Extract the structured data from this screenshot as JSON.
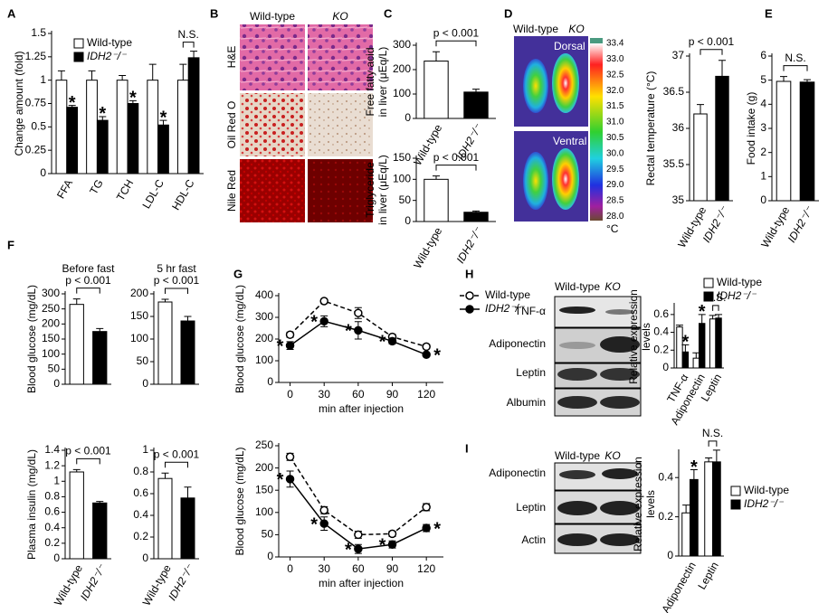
{
  "chart_data": [
    {
      "panel": "A",
      "type": "bar",
      "categories": [
        "FFA",
        "TG",
        "TCH",
        "LDL-C",
        "HDL-C"
      ],
      "series": [
        {
          "name": "Wild-type",
          "color": "#ffffff",
          "values": [
            1,
            1,
            1,
            1,
            1
          ],
          "errors": [
            0.1,
            0.1,
            0.05,
            0.17,
            0.17
          ]
        },
        {
          "name": "IDH2⁻/⁻",
          "color": "#000000",
          "values": [
            0.71,
            0.57,
            0.75,
            0.52,
            1.24
          ],
          "errors": [
            0.02,
            0.04,
            0.03,
            0.05,
            0.07
          ],
          "annotations": [
            "*",
            "*",
            "*",
            "*",
            null
          ]
        }
      ],
      "ylim": [
        0,
        1.5
      ],
      "yticks": [
        0,
        0.25,
        0.5,
        0.75,
        1,
        1.25,
        1.5
      ],
      "ylabel": "Change amount (fold)",
      "comparisons": [
        {
          "label": "N.S.",
          "category": "HDL-C"
        }
      ]
    },
    {
      "panel": "C",
      "type": "bar",
      "categories": [
        "Wild-type",
        "IDH2⁻/⁻"
      ],
      "colors": [
        "#ffffff",
        "#000000"
      ],
      "values": [
        235,
        108
      ],
      "errors": [
        38,
        12
      ],
      "ylim": [
        0,
        300
      ],
      "yticks": [
        0,
        100,
        200,
        300
      ],
      "ylabel": [
        "Free fatty acid",
        "in liver (μEq/L)"
      ],
      "comparison": "p < 0.001"
    },
    {
      "type": "bar",
      "categories": [
        "Wild-type",
        "IDH2⁻/⁻"
      ],
      "colors": [
        "#ffffff",
        "#000000"
      ],
      "values": [
        100,
        22
      ],
      "errors": [
        8,
        3
      ],
      "ylim": [
        0,
        150
      ],
      "yticks": [
        0,
        50,
        100,
        150
      ],
      "ylabel": [
        "Triglyceride",
        "in liver (μEq/L)"
      ],
      "comparison": "p < 0.001"
    },
    {
      "type": "bar",
      "categories": [
        "Wild-type",
        "IDH2⁻/⁻"
      ],
      "colors": [
        "#ffffff",
        "#000000"
      ],
      "values": [
        36.2,
        36.72
      ],
      "errors": [
        0.13,
        0.22
      ],
      "ylim": [
        35,
        37
      ],
      "yticks": [
        35,
        35.5,
        36,
        36.5,
        37
      ],
      "ylabel": "Rectal temperature (°C)",
      "comparison": "p < 0.001"
    },
    {
      "panel": "E",
      "type": "bar",
      "categories": [
        "Wild-type",
        "IDH2⁻/⁻"
      ],
      "colors": [
        "#ffffff",
        "#000000"
      ],
      "values": [
        4.95,
        4.92
      ],
      "errors": [
        0.2,
        0.1
      ],
      "ylim": [
        0,
        6
      ],
      "yticks": [
        0,
        1,
        2,
        3,
        4,
        5,
        6
      ],
      "ylabel": "Food intake (g)",
      "comparison": "N.S."
    },
    {
      "panel": "F",
      "type": "bar",
      "title": "Before fast",
      "categories": [
        null,
        null
      ],
      "colors": [
        "#ffffff",
        "#000000"
      ],
      "values": [
        265,
        175
      ],
      "errors": [
        18,
        10
      ],
      "ylim": [
        0,
        300
      ],
      "yticks": [
        0,
        50,
        100,
        150,
        200,
        250,
        300
      ],
      "ylabel": "Blood glucose (mg/dL)",
      "comparison": "p < 0.001"
    },
    {
      "type": "bar",
      "title": "5 hr fast",
      "categories": [
        null,
        null
      ],
      "colors": [
        "#ffffff",
        "#000000"
      ],
      "values": [
        182,
        140
      ],
      "errors": [
        6,
        10
      ],
      "ylim": [
        0,
        200
      ],
      "yticks": [
        0,
        50,
        100,
        150,
        200
      ],
      "comparison": "p < 0.001"
    },
    {
      "type": "bar",
      "categories": [
        "Wild-type",
        "IDH2⁻/⁻"
      ],
      "colors": [
        "#ffffff",
        "#000000"
      ],
      "values": [
        1.12,
        0.72
      ],
      "errors": [
        0.03,
        0.02
      ],
      "ylim": [
        0,
        1.4
      ],
      "yticks": [
        0,
        0.2,
        0.4,
        0.6,
        0.8,
        1,
        1.2,
        1.4
      ],
      "ylabel": "Plasma insulin (mg/dL)",
      "comparison": "p < 0.001"
    },
    {
      "type": "bar",
      "categories": [
        "Wild-type",
        "IDH2⁻/⁻"
      ],
      "colors": [
        "#ffffff",
        "#000000"
      ],
      "values": [
        0.74,
        0.56
      ],
      "errors": [
        0.05,
        0.1
      ],
      "ylim": [
        0,
        1
      ],
      "yticks": [
        0,
        0.2,
        0.4,
        0.6,
        0.8,
        1
      ],
      "comparison": "p < 0.001"
    },
    {
      "panel": "G",
      "type": "line",
      "x": [
        0,
        30,
        60,
        90,
        120
      ],
      "xlim": [
        -10,
        135
      ],
      "xticks": [
        0,
        30,
        60,
        90,
        120
      ],
      "series": [
        {
          "name": "Wild-type",
          "color": "#000000",
          "dash": true,
          "marker": "open",
          "values": [
            220,
            375,
            320,
            210,
            165
          ],
          "errors": [
            12,
            8,
            25,
            12,
            10
          ]
        },
        {
          "name": "IDH2⁻/⁻",
          "color": "#000000",
          "dash": false,
          "marker": "filled",
          "values": [
            170,
            282,
            240,
            190,
            128
          ],
          "errors": [
            18,
            25,
            40,
            12,
            8
          ],
          "annotations": [
            "*",
            "*",
            "*",
            "*",
            "*"
          ]
        }
      ],
      "ylim": [
        0,
        400
      ],
      "yticks": [
        0,
        100,
        200,
        300,
        400
      ],
      "ylabel": "Blood glucose (mg/dL)",
      "xlabel": "min after injection"
    },
    {
      "type": "line",
      "x": [
        0,
        30,
        60,
        90,
        120
      ],
      "xlim": [
        -10,
        135
      ],
      "xticks": [
        0,
        30,
        60,
        90,
        120
      ],
      "series": [
        {
          "name": null,
          "color": "#000000",
          "dash": true,
          "marker": "open",
          "values": [
            225,
            105,
            50,
            52,
            112
          ],
          "errors": [
            8,
            8,
            8,
            6,
            8
          ]
        },
        {
          "name": null,
          "color": "#000000",
          "dash": false,
          "marker": "filled",
          "values": [
            175,
            75,
            18,
            28,
            65
          ],
          "errors": [
            18,
            15,
            10,
            8,
            8
          ],
          "annotations": [
            "*",
            "*",
            "*",
            "*",
            "*"
          ]
        }
      ],
      "ylim": [
        0,
        250
      ],
      "yticks": [
        0,
        50,
        100,
        150,
        200,
        250
      ],
      "ylabel": "Blood glucose (mg/dL)",
      "xlabel": "min after injection"
    },
    {
      "type": "bar",
      "categories": [
        "TNF-α",
        "Adiponectin",
        "Leptin"
      ],
      "series": [
        {
          "name": "Wild-type",
          "color": "#ffffff",
          "values": [
            0.46,
            0.11,
            0.55
          ],
          "errors": [
            0.02,
            0.06,
            0.04
          ]
        },
        {
          "name": "IDH2⁻/⁻",
          "color": "#000000",
          "values": [
            0.18,
            0.5,
            0.56
          ],
          "errors": [
            0.08,
            0.1,
            0.04
          ],
          "annotations": [
            "*",
            "*",
            null
          ]
        }
      ],
      "ylim": [
        0,
        0.7
      ],
      "yticks": [
        0,
        0.2,
        0.4,
        0.6
      ],
      "ylabel": [
        "Relative expression",
        "levels"
      ],
      "comparisons": [
        {
          "label": "N.S.",
          "category": "Leptin"
        }
      ]
    },
    {
      "type": "bar",
      "categories": [
        "Adiponectin",
        "Leptin"
      ],
      "series": [
        {
          "name": "Wild-type",
          "color": "#ffffff",
          "values": [
            0.22,
            0.48
          ],
          "errors": [
            0.04,
            0.02
          ]
        },
        {
          "name": "IDH2⁻/⁻",
          "color": "#000000",
          "values": [
            0.39,
            0.48
          ],
          "errors": [
            0.05,
            0.06
          ],
          "annotations": [
            "*",
            null
          ]
        }
      ],
      "ylim": [
        0,
        0.53
      ],
      "yticks": [
        0,
        0.2,
        0.4
      ],
      "ylabel": [
        "Relative expression",
        "levels"
      ],
      "comparisons": [
        {
          "label": "N.S.",
          "category": "Leptin"
        }
      ]
    }
  ],
  "figures": {
    "B": {
      "panel": "B",
      "columns": [
        "Wild-type",
        "KO"
      ],
      "rows": [
        "H&E",
        "Oil Red O",
        "Nile Red"
      ]
    },
    "D": {
      "panel": "D",
      "columns": [
        "Wild-type",
        "KO"
      ],
      "views": [
        "Dorsal",
        "Ventral"
      ],
      "scale": [
        "33.4",
        "33.0",
        "32.5",
        "32.0",
        "31.5",
        "31.0",
        "30.5",
        "30.0",
        "29.5",
        "29.0",
        "28.5",
        "28.0"
      ],
      "unit": "°C"
    },
    "H": {
      "panel": "H",
      "columns": [
        "Wild-type",
        "KO"
      ],
      "rows": [
        "TNF-α",
        "Adiponectin",
        "Leptin",
        "Albumin"
      ]
    },
    "I": {
      "panel": "I",
      "columns": [
        "Wild-type",
        "KO"
      ],
      "rows": [
        "Adiponectin",
        "Leptin",
        "Actin"
      ]
    }
  }
}
